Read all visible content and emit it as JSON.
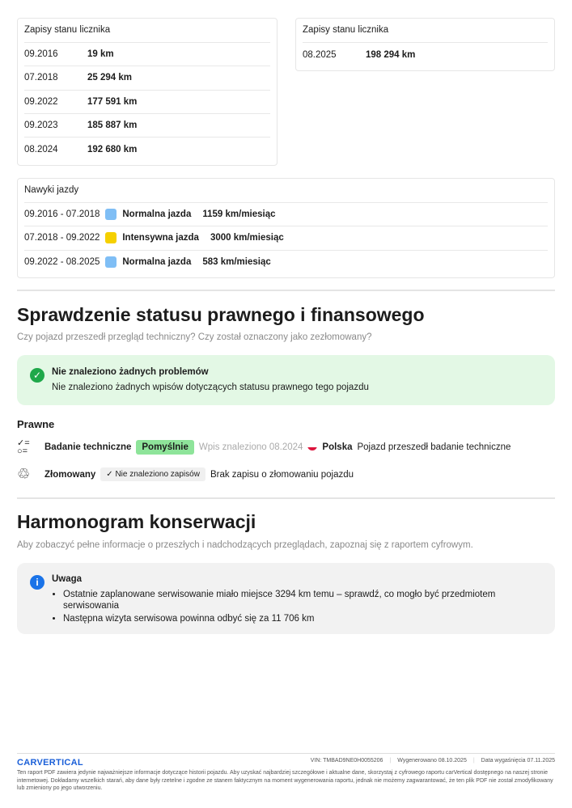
{
  "odometer_left": {
    "title": "Zapisy stanu licznika",
    "rows": [
      {
        "date": "09.2016",
        "value": "19 km"
      },
      {
        "date": "07.2018",
        "value": "25 294 km"
      },
      {
        "date": "09.2022",
        "value": "177 591 km"
      },
      {
        "date": "09.2023",
        "value": "185 887 km"
      },
      {
        "date": "08.2024",
        "value": "192 680 km"
      }
    ]
  },
  "odometer_right": {
    "title": "Zapisy stanu licznika",
    "rows": [
      {
        "date": "08.2025",
        "value": "198 294 km"
      }
    ]
  },
  "driving": {
    "title": "Nawyki jazdy",
    "rows": [
      {
        "period": "09.2016 - 07.2018",
        "color": "#7fbef5",
        "label": "Normalna jazda",
        "rate": "1159 km/miesiąc"
      },
      {
        "period": "07.2018 - 09.2022",
        "color": "#f5d000",
        "label": "Intensywna jazda",
        "rate": "3000 km/miesiąc"
      },
      {
        "period": "09.2022 - 08.2025",
        "color": "#7fbef5",
        "label": "Normalna jazda",
        "rate": "583 km/miesiąc"
      }
    ]
  },
  "legal": {
    "title": "Sprawdzenie statusu prawnego i finansowego",
    "subtitle": "Czy pojazd przeszedł przegląd techniczny? Czy został oznaczony jako zezłomowany?",
    "alert_title": "Nie znaleziono żadnych problemów",
    "alert_text": "Nie znaleziono żadnych wpisów dotyczących statusu prawnego tego pojazdu",
    "section": "Prawne",
    "inspection": {
      "label": "Badanie techniczne",
      "status": "Pomyślnie",
      "found": "Wpis znaleziono 08.2024",
      "country": "Polska",
      "desc": "Pojazd przeszedł badanie techniczne"
    },
    "scrapped": {
      "label": "Złomowany",
      "status": "Nie znaleziono zapisów",
      "desc": "Brak zapisu o złomowaniu pojazdu"
    }
  },
  "maintenance": {
    "title": "Harmonogram konserwacji",
    "subtitle": "Aby zobaczyć pełne informacje o przeszłych i nadchodzących przeglądach, zapoznaj się z raportem cyfrowym.",
    "note_title": "Uwaga",
    "items": [
      "Ostatnie zaplanowane serwisowanie miało miejsce 3294 km temu – sprawdź, co mogło być przedmiotem serwisowania",
      "Następna wizyta serwisowa powinna odbyć się za 11 706 km"
    ]
  },
  "footer": {
    "logo": "CARVERTICAL",
    "vin": "VIN:  TMBAD9NE0H0055206",
    "generated": "Wygenerowano  08.10.2025",
    "expires": "Data wygaśnięcia  07.11.2025",
    "disclaimer": "Ten raport PDF zawiera jedynie najważniejsze informacje dotyczące historii pojazdu. Aby uzyskać najbardziej szczegółowe i aktualne dane, skorzystaj z cyfrowego raportu carVertical dostępnego na naszej stronie internetowej. Dokładamy wszelkich starań, aby dane były rzetelne i zgodne ze stanem faktycznym na moment wygenerowania raportu, jednak nie możemy zagwarantować, że ten plik PDF nie został zmodyfikowany lub zmieniony po jego utworzeniu."
  }
}
